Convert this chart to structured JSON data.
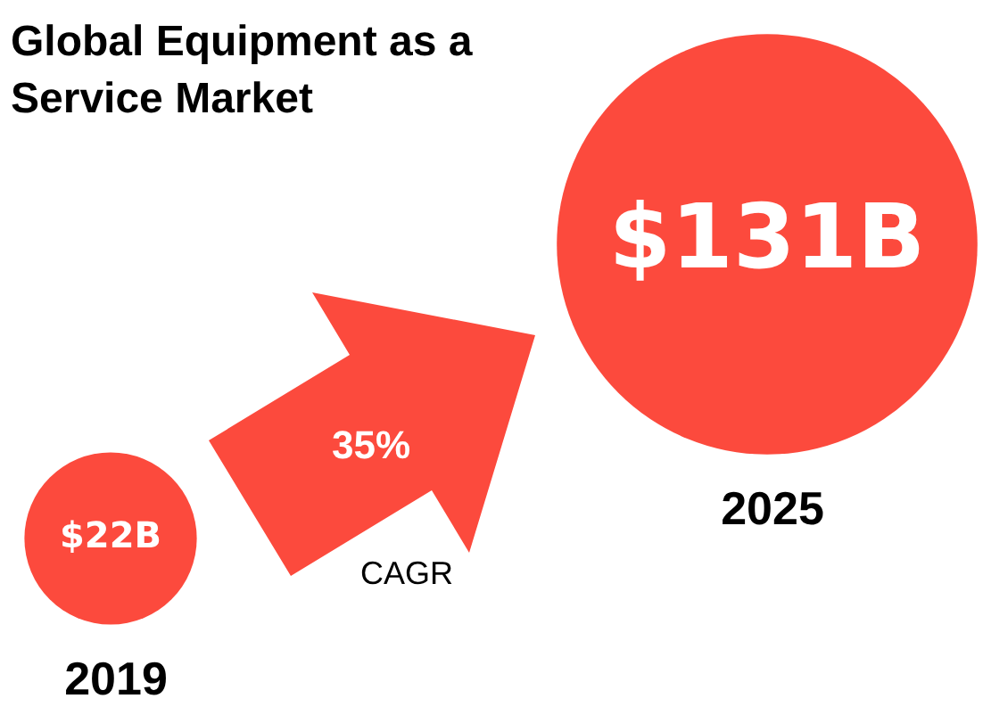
{
  "chart_data": {
    "type": "other",
    "title": "Global Equipment as a Service Market",
    "categories": [
      "2019",
      "2025"
    ],
    "values": [
      22,
      131
    ],
    "value_labels": [
      "$22B",
      "$131B"
    ],
    "color": "#fc4a3d",
    "annotations": [
      "35%",
      "CAGR"
    ]
  }
}
